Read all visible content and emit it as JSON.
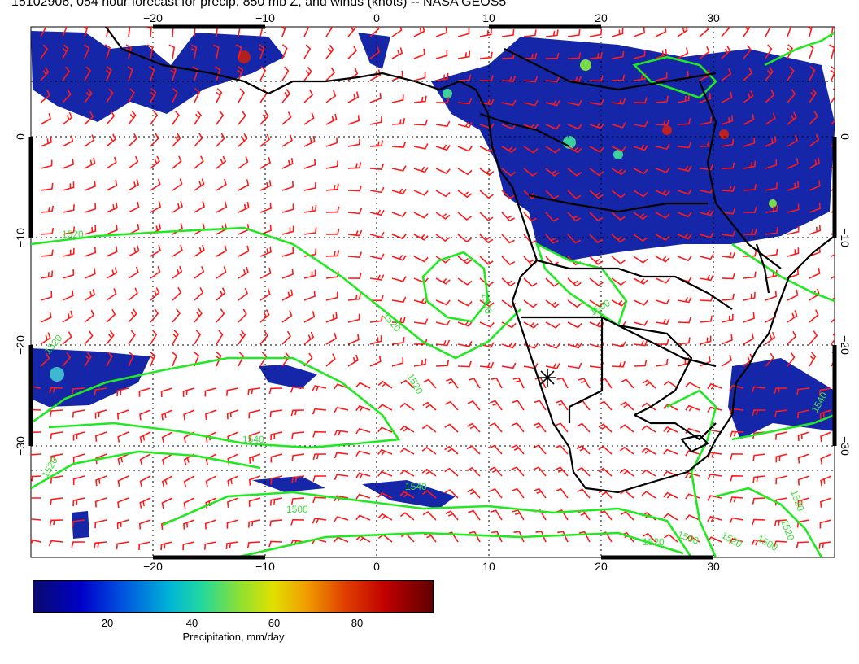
{
  "title": "15102906, 054 hour forecast for precip, 850 mb Z, and winds (knots) -- NASA GEOS5",
  "map": {
    "lon_ticks_top": [
      "−20",
      "−10",
      "0",
      "10",
      "20",
      "30"
    ],
    "lon_ticks_bottom": [
      "−20",
      "−10",
      "0",
      "10",
      "20",
      "30"
    ],
    "lat_ticks_left": [
      "0",
      "−10",
      "−20",
      "−30"
    ],
    "lat_ticks_right": [
      "0",
      "−10",
      "−20",
      "−30"
    ],
    "contour_labels": [
      "1520",
      "1500",
      "1520",
      "1520",
      "1540",
      "1520",
      "1500",
      "1500",
      "1520",
      "1540",
      "1500",
      "1520",
      "1520",
      "1500",
      "1520",
      "1520",
      "1540"
    ],
    "colors": {
      "precip_low": "#0a1a9a",
      "contour": "#22e822",
      "wind_barb": "#ff1a1a",
      "coastline": "#000000"
    }
  },
  "colorbar": {
    "labels": [
      "20",
      "40",
      "60",
      "80"
    ],
    "title": "Precipitation, mm/day"
  }
}
